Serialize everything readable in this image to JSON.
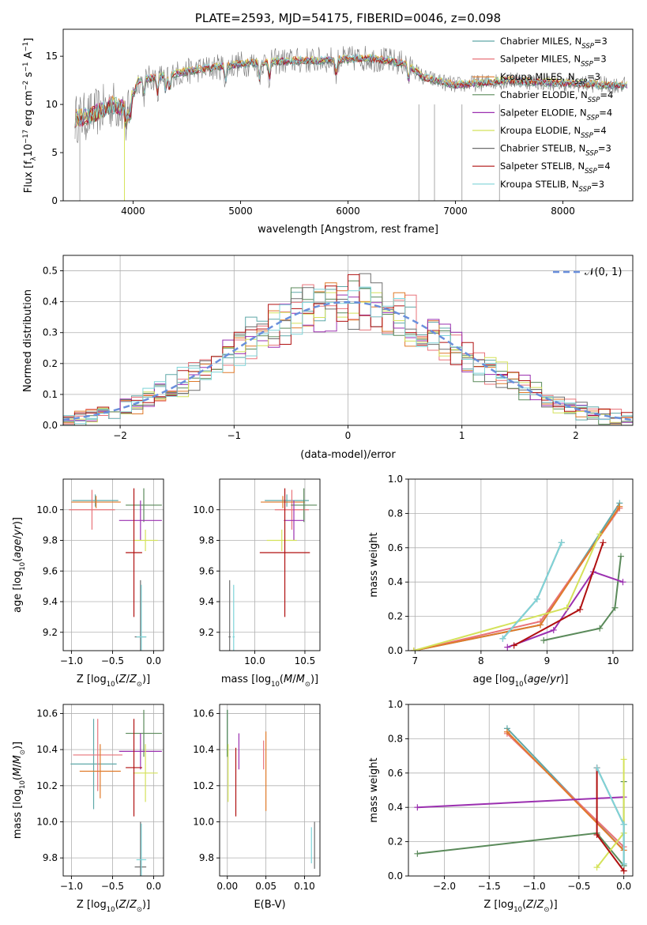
{
  "colors": {
    "Chabrier MILES": "#5fa8a8",
    "Salpeter MILES": "#e8737a",
    "Kroupa MILES": "#e07a2a",
    "Chabrier ELODIE": "#5a8a5a",
    "Salpeter ELODIE": "#9b30b0",
    "Kroupa ELODIE": "#d4e25a",
    "Chabrier STELIB": "#6e6e6e",
    "Salpeter STELIB": "#b01010",
    "Kroupa STELIB": "#7fd4d8",
    "normal": "#6a8fdc"
  },
  "models": [
    "Chabrier MILES",
    "Salpeter MILES",
    "Kroupa MILES",
    "Chabrier ELODIE",
    "Salpeter ELODIE",
    "Kroupa ELODIE",
    "Chabrier STELIB",
    "Salpeter STELIB",
    "Kroupa STELIB"
  ],
  "chart_data": [
    {
      "id": "spectrum",
      "type": "line",
      "title": "PLATE=2593, MJD=54175, FIBERID=0046, z=0.098",
      "xlabel": "wavelength [Angstrom, rest frame]",
      "ylabel": "Flux [fλ10⁻¹⁷ erg cm⁻² s⁻¹ A⁻¹]",
      "xlim": [
        3350,
        8650
      ],
      "ylim": [
        0,
        17.8
      ],
      "xticks": [
        4000,
        5000,
        6000,
        7000,
        8000
      ],
      "yticks": [
        0,
        5,
        10,
        15
      ],
      "legend_position": "top-right",
      "legend": [
        "Chabrier MILES, N$SSP=3",
        "Salpeter MILES, N$SSP=3",
        "Kroupa MILES, N$SSP=3",
        "Chabrier ELODIE, N$SSP=4",
        "Salpeter ELODIE, N$SSP=4",
        "Kroupa ELODIE, N$SSP=4",
        "Chabrier STELIB, N$SSP=3",
        "Salpeter STELIB, N$SSP=4",
        "Kroupa STELIB, N$SSP=3"
      ],
      "continuum": {
        "x": [
          3450,
          3600,
          3800,
          3950,
          4050,
          4300,
          4600,
          5000,
          5400,
          5800,
          6200,
          6550,
          6700,
          7000,
          7500,
          8000,
          8500
        ],
        "y": [
          8.5,
          8.8,
          10.0,
          9.5,
          12.5,
          13.0,
          13.6,
          14.2,
          14.5,
          14.6,
          14.8,
          14.2,
          12.8,
          12.0,
          12.5,
          12.2,
          12.0
        ]
      }
    },
    {
      "id": "residuals",
      "type": "line",
      "xlabel": "(data-model)/error",
      "ylabel": "Normed distribution",
      "xlim": [
        -2.5,
        2.5
      ],
      "ylim": [
        0,
        0.55
      ],
      "xticks": [
        -2,
        -1,
        0,
        1,
        2
      ],
      "yticks": [
        0.0,
        0.1,
        0.2,
        0.3,
        0.4,
        0.5
      ],
      "legend_position": "top-right",
      "legend": [
        "𝒩(0, 1)"
      ],
      "normal_mean": 0,
      "normal_sigma": 1,
      "bin_width": 0.1
    },
    {
      "id": "age-vs-Z",
      "type": "scatter",
      "xlabel": "Z [log₁₀(Z/Z⊙)]",
      "ylabel": "age  [log₁₀(age/yr)]",
      "xlim": [
        -1.1,
        0.12
      ],
      "ylim": [
        9.08,
        10.2
      ],
      "xticks": [
        -1.0,
        -0.5,
        0.0
      ],
      "yticks": [
        9.2,
        9.4,
        9.6,
        9.8,
        10.0
      ],
      "points": [
        {
          "model": "Chabrier MILES",
          "x": -0.71,
          "y": 10.06,
          "xerr": 0.28,
          "yerr": 0.04
        },
        {
          "model": "Salpeter MILES",
          "x": -0.75,
          "y": 10.0,
          "xerr": 0.28,
          "yerr": 0.13
        },
        {
          "model": "Kroupa MILES",
          "x": -0.7,
          "y": 10.05,
          "xerr": 0.3,
          "yerr": 0.04
        },
        {
          "model": "Chabrier ELODIE",
          "x": -0.12,
          "y": 10.03,
          "xerr": 0.22,
          "yerr": 0.11
        },
        {
          "model": "Salpeter ELODIE",
          "x": -0.16,
          "y": 9.93,
          "xerr": 0.26,
          "yerr": 0.13
        },
        {
          "model": "Kroupa ELODIE",
          "x": -0.1,
          "y": 9.8,
          "xerr": 0.15,
          "yerr": 0.07
        },
        {
          "model": "Chabrier STELIB",
          "x": -0.16,
          "y": 9.17,
          "xerr": 0.07,
          "yerr": 0.37
        },
        {
          "model": "Salpeter STELIB",
          "x": -0.24,
          "y": 9.72,
          "xerr": 0.1,
          "yerr": 0.42
        },
        {
          "model": "Kroupa STELIB",
          "x": -0.15,
          "y": 9.17,
          "xerr": 0.06,
          "yerr": 0.34
        }
      ]
    },
    {
      "id": "age-vs-mass",
      "type": "scatter",
      "xlabel": "mass [log₁₀(M/M⊙)]",
      "ylabel": "",
      "xlim": [
        9.65,
        10.65
      ],
      "ylim": [
        9.08,
        10.2
      ],
      "xticks": [
        10.0,
        10.5
      ],
      "yticks": [
        9.2,
        9.4,
        9.6,
        9.8,
        10.0
      ],
      "points": [
        {
          "model": "Chabrier MILES",
          "x": 10.32,
          "y": 10.06,
          "xerr": 0.22,
          "yerr": 0.04
        },
        {
          "model": "Salpeter MILES",
          "x": 10.37,
          "y": 10.0,
          "xerr": 0.17,
          "yerr": 0.13
        },
        {
          "model": "Kroupa MILES",
          "x": 10.28,
          "y": 10.05,
          "xerr": 0.22,
          "yerr": 0.04
        },
        {
          "model": "Chabrier ELODIE",
          "x": 10.49,
          "y": 10.03,
          "xerr": 0.13,
          "yerr": 0.11
        },
        {
          "model": "Salpeter ELODIE",
          "x": 10.39,
          "y": 9.93,
          "xerr": 0.1,
          "yerr": 0.13
        },
        {
          "model": "Kroupa ELODIE",
          "x": 10.27,
          "y": 9.8,
          "xerr": 0.15,
          "yerr": 0.07
        },
        {
          "model": "Chabrier STELIB",
          "x": 9.75,
          "y": 9.17,
          "xerr": 0.01,
          "yerr": 0.37
        },
        {
          "model": "Salpeter STELIB",
          "x": 10.3,
          "y": 9.72,
          "xerr": 0.25,
          "yerr": 0.42
        },
        {
          "model": "Kroupa STELIB",
          "x": 9.79,
          "y": 9.17,
          "xerr": 0.01,
          "yerr": 0.34
        }
      ]
    },
    {
      "id": "massweight-vs-age",
      "type": "line",
      "xlabel": "age  [log₁₀(age/yr)]",
      "ylabel": "mass weight",
      "xlim": [
        6.9,
        10.3
      ],
      "ylim": [
        0.0,
        1.0
      ],
      "xticks": [
        7,
        8,
        9,
        10
      ],
      "yticks": [
        0.0,
        0.2,
        0.4,
        0.6,
        0.8,
        1.0
      ],
      "series": [
        {
          "model": "Chabrier MILES",
          "x": [
            6.98,
            8.9,
            10.1
          ],
          "y": [
            0.0,
            0.15,
            0.86
          ]
        },
        {
          "model": "Salpeter MILES",
          "x": [
            6.98,
            8.9,
            10.1
          ],
          "y": [
            0.0,
            0.17,
            0.83
          ]
        },
        {
          "model": "Kroupa MILES",
          "x": [
            6.98,
            8.9,
            10.1
          ],
          "y": [
            0.0,
            0.15,
            0.84
          ]
        },
        {
          "model": "Chabrier ELODIE",
          "x": [
            8.95,
            9.8,
            10.03,
            10.12
          ],
          "y": [
            0.06,
            0.13,
            0.25,
            0.55
          ]
        },
        {
          "model": "Salpeter ELODIE",
          "x": [
            8.4,
            9.1,
            9.7,
            10.15
          ],
          "y": [
            0.02,
            0.12,
            0.46,
            0.4
          ]
        },
        {
          "model": "Kroupa ELODIE",
          "x": [
            6.98,
            9.3,
            9.8
          ],
          "y": [
            0.0,
            0.25,
            0.68
          ]
        },
        {
          "model": "Chabrier STELIB",
          "x": [
            8.33,
            8.85,
            9.22
          ],
          "y": [
            0.07,
            0.3,
            0.63
          ]
        },
        {
          "model": "Salpeter STELIB",
          "x": [
            8.5,
            9.5,
            9.85
          ],
          "y": [
            0.03,
            0.24,
            0.63
          ]
        },
        {
          "model": "Kroupa STELIB",
          "x": [
            8.33,
            8.85,
            9.22
          ],
          "y": [
            0.07,
            0.3,
            0.63
          ]
        }
      ]
    },
    {
      "id": "mass-vs-Z",
      "type": "scatter",
      "xlabel": "Z [log₁₀(Z/Z⊙)]",
      "ylabel": "mass [log₁₀(M/M⊙)]",
      "xlim": [
        -1.1,
        0.12
      ],
      "ylim": [
        9.7,
        10.65
      ],
      "xticks": [
        -1.0,
        -0.5,
        0.0
      ],
      "yticks": [
        9.8,
        10.0,
        10.2,
        10.4,
        10.6
      ],
      "points": [
        {
          "model": "Chabrier MILES",
          "x": -0.73,
          "y": 10.32,
          "xerr": 0.28,
          "yerr": 0.25
        },
        {
          "model": "Salpeter MILES",
          "x": -0.68,
          "y": 10.37,
          "xerr": 0.3,
          "yerr": 0.2
        },
        {
          "model": "Kroupa MILES",
          "x": -0.65,
          "y": 10.28,
          "xerr": 0.25,
          "yerr": 0.15
        },
        {
          "model": "Chabrier ELODIE",
          "x": -0.12,
          "y": 10.49,
          "xerr": 0.22,
          "yerr": 0.13
        },
        {
          "model": "Salpeter ELODIE",
          "x": -0.16,
          "y": 10.39,
          "xerr": 0.26,
          "yerr": 0.1
        },
        {
          "model": "Kroupa ELODIE",
          "x": -0.1,
          "y": 10.27,
          "xerr": 0.15,
          "yerr": 0.16
        },
        {
          "model": "Chabrier STELIB",
          "x": -0.16,
          "y": 9.75,
          "xerr": 0.07,
          "yerr": 0.25
        },
        {
          "model": "Salpeter STELIB",
          "x": -0.24,
          "y": 10.3,
          "xerr": 0.1,
          "yerr": 0.27
        },
        {
          "model": "Kroupa STELIB",
          "x": -0.15,
          "y": 9.79,
          "xerr": 0.06,
          "yerr": 0.2
        }
      ]
    },
    {
      "id": "mass-vs-ebv",
      "type": "scatter",
      "xlabel": "E(B-V)",
      "ylabel": "",
      "xlim": [
        -0.01,
        0.12
      ],
      "ylim": [
        9.7,
        10.65
      ],
      "xticks": [
        0.0,
        0.05,
        0.1
      ],
      "yticks": [
        9.8,
        10.0,
        10.2,
        10.4,
        10.6
      ],
      "points": [
        {
          "model": "Chabrier MILES",
          "x": 0.0,
          "y": 10.49,
          "xerr": 0,
          "yerr": 0.13
        },
        {
          "model": "Salpeter MILES",
          "x": 0.047,
          "y": 10.37,
          "xerr": 0,
          "yerr": 0.08
        },
        {
          "model": "Kroupa MILES",
          "x": 0.05,
          "y": 10.28,
          "xerr": 0,
          "yerr": 0.22
        },
        {
          "model": "Chabrier ELODIE",
          "x": 0.0,
          "y": 10.49,
          "xerr": 0,
          "yerr": 0.13
        },
        {
          "model": "Salpeter ELODIE",
          "x": 0.015,
          "y": 10.39,
          "xerr": 0,
          "yerr": 0.1
        },
        {
          "model": "Kroupa ELODIE",
          "x": 0.001,
          "y": 10.27,
          "xerr": 0,
          "yerr": 0.16
        },
        {
          "model": "Chabrier STELIB",
          "x": 0.113,
          "y": 9.87,
          "xerr": 0,
          "yerr": 0.13
        },
        {
          "model": "Salpeter STELIB",
          "x": 0.011,
          "y": 10.22,
          "xerr": 0,
          "yerr": 0.19
        },
        {
          "model": "Kroupa STELIB",
          "x": 0.109,
          "y": 9.87,
          "xerr": 0,
          "yerr": 0.1
        }
      ]
    },
    {
      "id": "massweight-vs-Z",
      "type": "line",
      "xlabel": "Z [log₁₀(Z/Z⊙)]",
      "ylabel": "mass weight",
      "xlim": [
        -2.4,
        0.1
      ],
      "ylim": [
        0.0,
        1.0
      ],
      "xticks": [
        -2.0,
        -1.5,
        -1.0,
        -0.5,
        0.0
      ],
      "yticks": [
        0.0,
        0.2,
        0.4,
        0.6,
        0.8,
        1.0
      ],
      "series": [
        {
          "model": "Chabrier MILES",
          "x": [
            -1.3,
            0.0
          ],
          "y": [
            0.86,
            0.15
          ]
        },
        {
          "model": "Salpeter MILES",
          "x": [
            -1.3,
            0.0
          ],
          "y": [
            0.83,
            0.17
          ]
        },
        {
          "model": "Kroupa MILES",
          "x": [
            -1.3,
            0.0
          ],
          "y": [
            0.84,
            0.15
          ]
        },
        {
          "model": "Chabrier ELODIE",
          "x": [
            -2.3,
            -0.3,
            0.0,
            0.0
          ],
          "y": [
            0.13,
            0.25,
            0.06,
            0.55
          ]
        },
        {
          "model": "Salpeter ELODIE",
          "x": [
            -2.3,
            0.0
          ],
          "y": [
            0.4,
            0.46
          ]
        },
        {
          "model": "Kroupa ELODIE",
          "x": [
            -0.3,
            0.0,
            0.0
          ],
          "y": [
            0.05,
            0.25,
            0.68
          ]
        },
        {
          "model": "Chabrier STELIB",
          "x": [
            -0.3,
            0.0,
            0.0
          ],
          "y": [
            0.63,
            0.3,
            0.07
          ]
        },
        {
          "model": "Salpeter STELIB",
          "x": [
            -0.3,
            -0.3,
            0.0,
            0.0
          ],
          "y": [
            0.63,
            0.24,
            0.03,
            0.03
          ]
        },
        {
          "model": "Kroupa STELIB",
          "x": [
            -0.3,
            0.0,
            0.0
          ],
          "y": [
            0.63,
            0.3,
            0.07
          ]
        }
      ]
    }
  ]
}
